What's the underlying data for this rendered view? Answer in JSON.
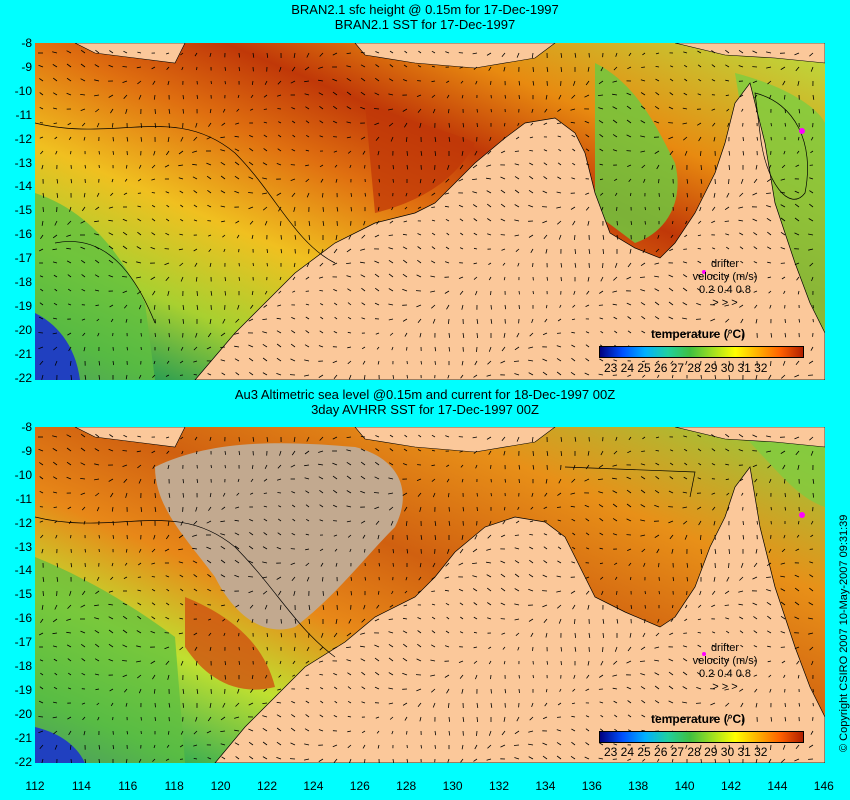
{
  "top": {
    "title1": "BRAN2.1 sfc height @ 0.15m for 17-Dec-1997",
    "title2": "BRAN2.1 SST for 17-Dec-1997",
    "colorbar_title": "temperature (°C)",
    "colorbar_ticks": "23 24 25 26 27 28 29 30 31 32",
    "drifter_label": "drifter",
    "velocity_label": "velocity (m/s)",
    "velocity_values": "0.2 0.4 0.8",
    "velocity_arrows": ">    >    >"
  },
  "bottom": {
    "title1": "Au3 Altimetric sea level  @0.15m and current for 18-Dec-1997 00Z",
    "title2": "3day AVHRR SST for 17-Dec-1997 00Z",
    "colorbar_title": "temperature (°C)",
    "colorbar_ticks": "23 24 25 26 27 28 29 30 31 32",
    "drifter_label": "drifter",
    "velocity_label": "velocity (m/s)",
    "velocity_values": "0.2 0.4 0.8",
    "velocity_arrows": ">    >    >"
  },
  "y_ticks": [
    "-8",
    "-9",
    "-10",
    "-11",
    "-12",
    "-13",
    "-14",
    "-15",
    "-16",
    "-17",
    "-18",
    "-19",
    "-20",
    "-21",
    "-22"
  ],
  "x_ticks": [
    "112",
    "114",
    "116",
    "118",
    "120",
    "122",
    "124",
    "126",
    "128",
    "130",
    "132",
    "134",
    "136",
    "138",
    "140",
    "142",
    "144",
    "146"
  ],
  "copyright": "© Copyright CSIRO 2007   10-May-2007 09:31:39",
  "colors": {
    "background": "#00ffff",
    "land": "#fbc89a",
    "missing_data": "#c2a98f",
    "drifter": "#ff00ff"
  }
}
